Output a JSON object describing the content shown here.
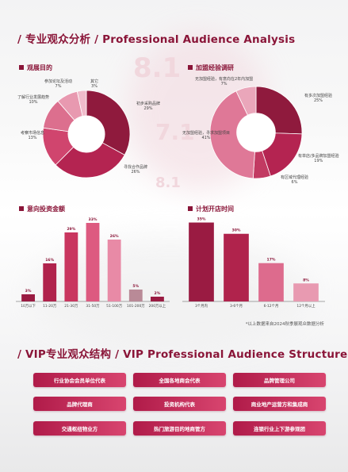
{
  "section1": {
    "title": "/ 专业观众分析 / Professional Audience Analysis"
  },
  "charts": {
    "visit_purpose": {
      "title": "观展目的",
      "labels": [
        {
          "text": "初步采购品牌",
          "pct": "29%"
        },
        {
          "text": "寻找合作品牌",
          "pct": "26%"
        },
        {
          "text": "考察市场信息",
          "pct": "13%"
        },
        {
          "text": "了解行业发展趋势",
          "pct": "10%"
        },
        {
          "text": "参加论坛及活动",
          "pct": "7%"
        },
        {
          "text": "其它",
          "pct": "3%"
        }
      ]
    },
    "join_experience": {
      "title": "加盟经验调研",
      "labels": [
        {
          "text": "有多次加盟经验",
          "pct": "25%"
        },
        {
          "text": "有单店/多品牌加盟经验",
          "pct": "19%"
        },
        {
          "text": "有区域代理经验",
          "pct": "6%"
        },
        {
          "text": "无加盟经验，寻求加盟项目",
          "pct": "41%"
        },
        {
          "text": "无加盟经验，有意向在2年内加盟",
          "pct": "7%"
        }
      ]
    },
    "investment": {
      "title": "意向投资金额"
    },
    "opening_time": {
      "title": "计划开店时间"
    }
  },
  "chart_data": [
    {
      "type": "pie",
      "title": "观展目的",
      "categories": [
        "初步采购品牌",
        "寻找合作品牌",
        "考察市场信息",
        "了解行业发展趋势",
        "参加论坛及活动",
        "其它"
      ],
      "values": [
        29,
        26,
        13,
        10,
        7,
        3
      ],
      "colors": [
        "#8f1a3d",
        "#b42451",
        "#d0456e",
        "#dc6f8e",
        "#e899b0",
        "#f0bccb"
      ]
    },
    {
      "type": "pie",
      "title": "加盟经验调研",
      "categories": [
        "有多次加盟经验",
        "有单店/多品牌加盟经验",
        "有区域代理经验",
        "无加盟经验，寻求加盟项目",
        "无加盟经验，有意向在2年内加盟"
      ],
      "values": [
        25,
        19,
        6,
        41,
        7
      ],
      "colors": [
        "#8f1a3d",
        "#b42451",
        "#c23a62",
        "#df7897",
        "#eaa6ba"
      ]
    },
    {
      "type": "bar",
      "title": "意向投资金额",
      "categories": [
        "10万以下",
        "11-20万",
        "21-30万",
        "31-50万",
        "51-100万",
        "101-200万",
        "200万以上"
      ],
      "values": [
        3,
        16,
        29,
        33,
        26,
        5,
        2
      ],
      "data_labels": [
        "3%",
        "16%",
        "29%",
        "33%",
        "26%",
        "5%",
        "2%"
      ],
      "ylim": [
        0,
        36
      ],
      "colors": [
        "#9a1b42",
        "#b0234c",
        "#c9365f",
        "#dd5a80",
        "#e88aa6",
        "#b98a97",
        "#9a1b42"
      ]
    },
    {
      "type": "bar",
      "title": "计划开店时间",
      "categories": [
        "3个月内",
        "3-6个月",
        "6-12个月",
        "12个月以上"
      ],
      "values": [
        35,
        30,
        17,
        8
      ],
      "data_labels": [
        "35%",
        "30%",
        "17%",
        "8%"
      ],
      "ylim": [
        0,
        38
      ],
      "colors": [
        "#9a1b42",
        "#b0234c",
        "#dd6b8d",
        "#e89ab1"
      ]
    }
  ],
  "note": "*以上数据来自2024秋季展观众数据分析",
  "section2": {
    "title": "/ VIP专业观众结构 / VIP Professional Audience Structure",
    "items": [
      "行业协会会员单位代表",
      "全国各地商会代表",
      "品牌管理公司",
      "品牌代理商",
      "投资机构代表",
      "商业地产运营方和集成商",
      "交通枢纽物业方",
      "热门旅游目的地商管方",
      "连锁行业上下游参观团"
    ]
  },
  "bg_deco": [
    "8.1",
    "7.1",
    "8.1"
  ]
}
